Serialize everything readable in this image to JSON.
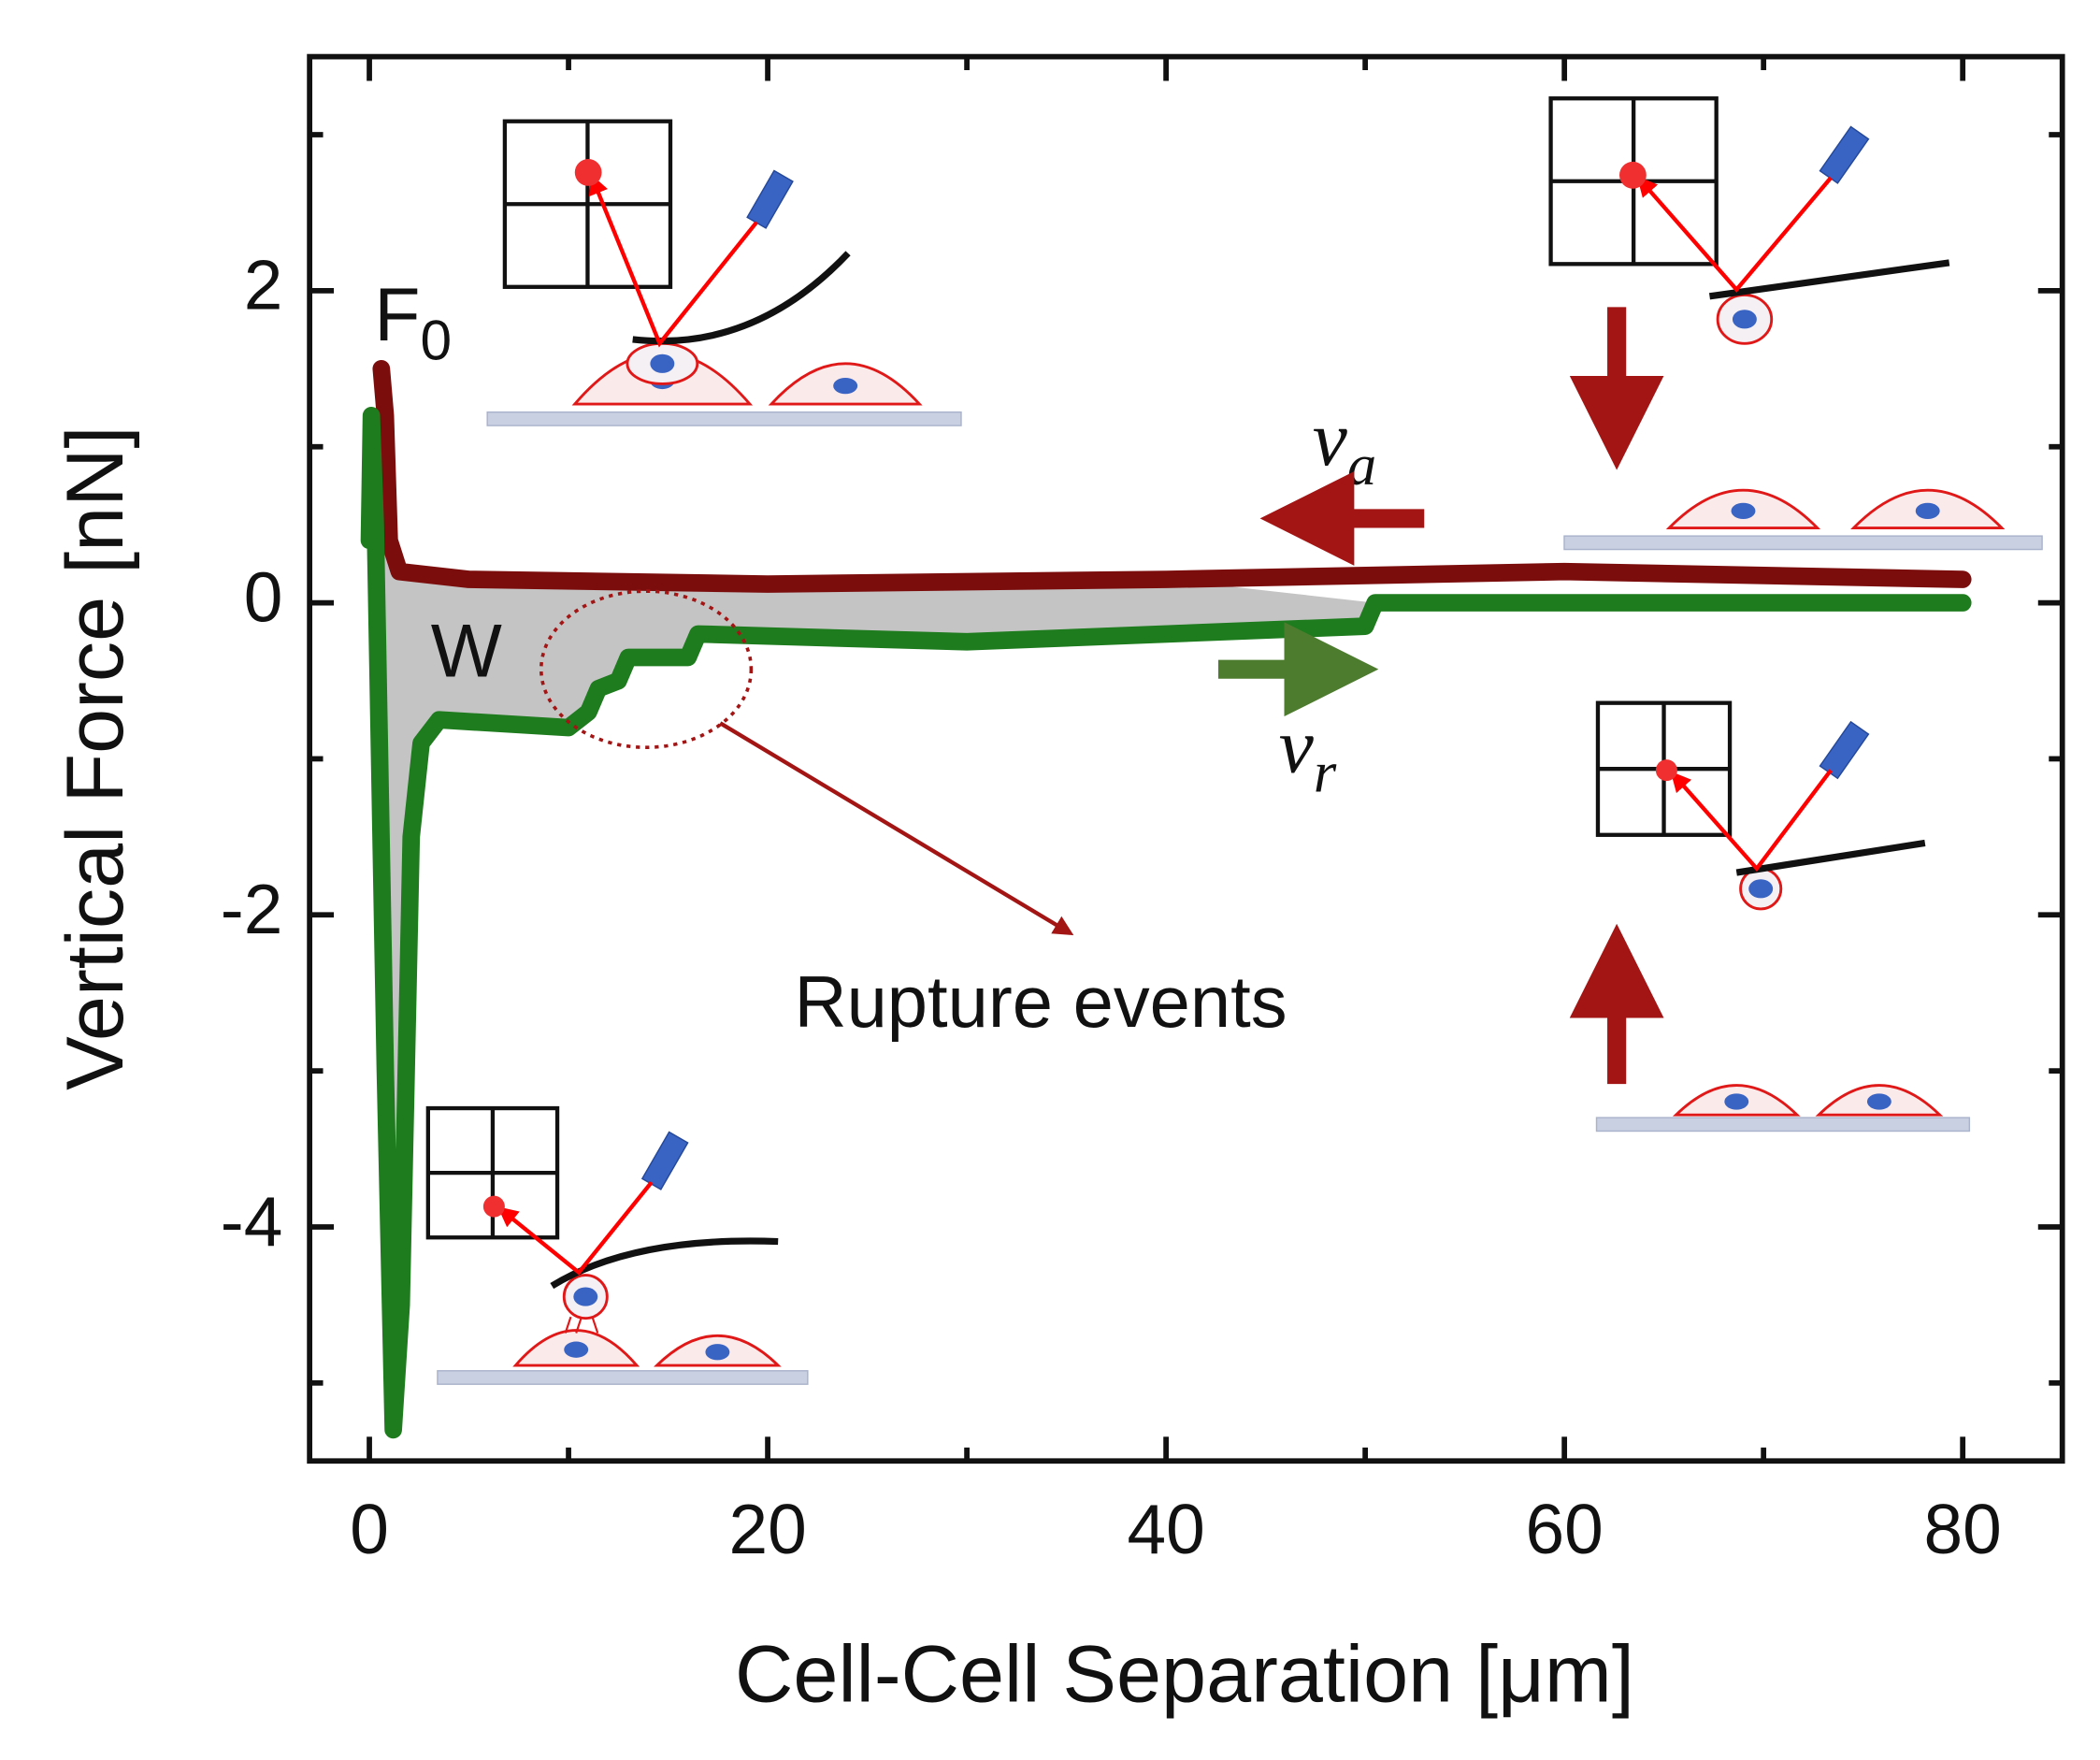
{
  "chart_data": {
    "type": "line",
    "xlabel": "Cell-Cell Separation [μm]",
    "ylabel": "Vertical Force [nN]",
    "xlim": [
      -3,
      85
    ],
    "ylim": [
      -5.5,
      3.5
    ],
    "xticks": [
      0,
      20,
      40,
      60,
      80
    ],
    "yticks": [
      2,
      0,
      -2,
      -4
    ],
    "xticks_minor": [
      10,
      30,
      50,
      70
    ],
    "yticks_minor": [
      3,
      1,
      -1,
      -3,
      -5
    ],
    "series": [
      {
        "color": "#7b0d0d",
        "x": [
          0.6,
          0.8,
          1.0,
          1.5,
          5,
          20,
          40,
          60,
          80
        ],
        "values": [
          1.5,
          1.2,
          0.4,
          0.2,
          0.15,
          0.12,
          0.15,
          0.2,
          0.15
        ]
      },
      {
        "color": "#1e7b1e",
        "x": [
          0,
          0.1,
          0.3,
          0.8,
          1.2,
          1.6,
          2.1,
          2.6,
          3.5,
          10,
          11,
          11.5,
          12.5,
          13,
          16,
          16.5,
          30,
          50,
          50.5,
          80
        ],
        "values": [
          0.4,
          1.2,
          0.5,
          -3,
          -5.3,
          -4.5,
          -1.5,
          -0.9,
          -0.75,
          -0.8,
          -0.7,
          -0.55,
          -0.5,
          -0.35,
          -0.35,
          -0.2,
          -0.25,
          -0.15,
          0,
          0
        ]
      }
    ],
    "annotations": [
      {
        "text": "F",
        "sub": "0"
      },
      {
        "text": "W"
      },
      {
        "text": "Rupture events"
      },
      {
        "text": "v",
        "sub": "a"
      },
      {
        "text": "v",
        "sub": "r"
      }
    ]
  }
}
